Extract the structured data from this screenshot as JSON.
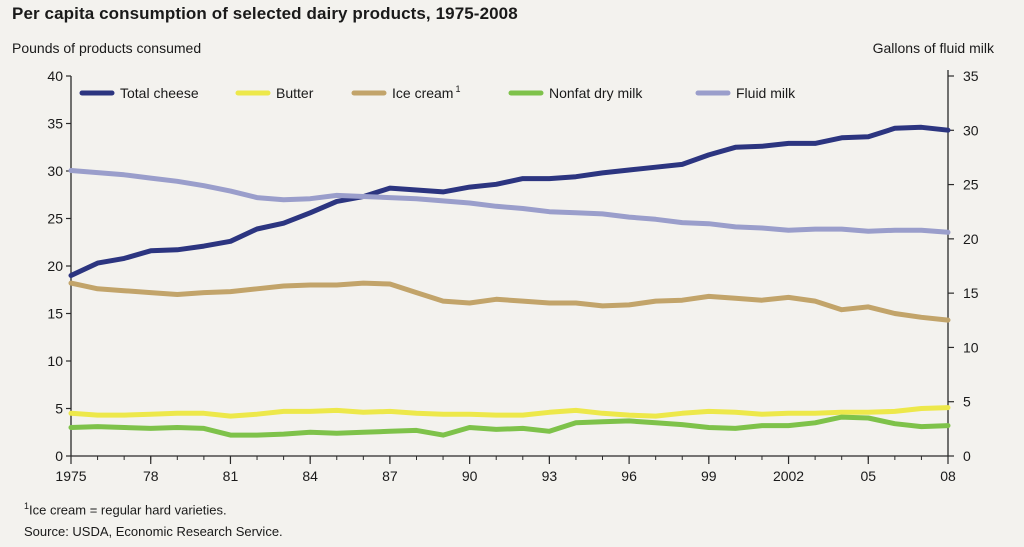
{
  "chart_data": {
    "type": "line",
    "title": "Per capita consumption of selected dairy products, 1975-2008",
    "ylabel_left": "Pounds of products consumed",
    "ylabel_right": "Gallons of fluid milk",
    "x": [
      1975,
      1976,
      1977,
      1978,
      1979,
      1980,
      1981,
      1982,
      1983,
      1984,
      1985,
      1986,
      1987,
      1988,
      1989,
      1990,
      1991,
      1992,
      1993,
      1994,
      1995,
      1996,
      1997,
      1998,
      1999,
      2000,
      2001,
      2002,
      2003,
      2004,
      2005,
      2006,
      2007,
      2008
    ],
    "x_tick_values": [
      1975,
      1978,
      1981,
      1984,
      1987,
      1990,
      1993,
      1996,
      1999,
      2002,
      2005,
      2008
    ],
    "x_tick_labels": [
      "1975",
      "78",
      "81",
      "84",
      "87",
      "90",
      "93",
      "96",
      "99",
      "2002",
      "05",
      "08"
    ],
    "ylim_left": [
      0,
      40
    ],
    "yticks_left": [
      0,
      5,
      10,
      15,
      20,
      25,
      30,
      35,
      40
    ],
    "ylim_right": [
      0,
      35
    ],
    "yticks_right": [
      0,
      5,
      10,
      15,
      20,
      25,
      30,
      35
    ],
    "legend_position": "top",
    "series": [
      {
        "name": "Total cheese",
        "axis": "left",
        "color": "#2c3580",
        "values": [
          19.0,
          20.3,
          20.8,
          21.6,
          21.7,
          22.1,
          22.6,
          23.9,
          24.5,
          25.6,
          26.8,
          27.3,
          28.2,
          28.0,
          27.8,
          28.3,
          28.6,
          29.2,
          29.2,
          29.4,
          29.8,
          30.1,
          30.4,
          30.7,
          31.7,
          32.5,
          32.6,
          32.9,
          32.9,
          33.5,
          33.6,
          34.5,
          34.6,
          34.3
        ]
      },
      {
        "name": "Butter",
        "axis": "left",
        "color": "#ede84a",
        "values": [
          4.5,
          4.3,
          4.3,
          4.4,
          4.5,
          4.5,
          4.2,
          4.4,
          4.7,
          4.7,
          4.8,
          4.6,
          4.7,
          4.5,
          4.4,
          4.4,
          4.3,
          4.3,
          4.6,
          4.8,
          4.5,
          4.3,
          4.2,
          4.5,
          4.7,
          4.6,
          4.4,
          4.5,
          4.5,
          4.6,
          4.6,
          4.7,
          5.0,
          5.1
        ]
      },
      {
        "name": "Ice cream",
        "name_sup": "1",
        "axis": "left",
        "color": "#c2a46a",
        "values": [
          18.2,
          17.6,
          17.4,
          17.2,
          17.0,
          17.2,
          17.3,
          17.6,
          17.9,
          18.0,
          18.0,
          18.2,
          18.1,
          17.2,
          16.3,
          16.1,
          16.5,
          16.3,
          16.1,
          16.1,
          15.8,
          15.9,
          16.3,
          16.4,
          16.8,
          16.6,
          16.4,
          16.7,
          16.3,
          15.4,
          15.7,
          15.0,
          14.6,
          14.3
        ]
      },
      {
        "name": "Nonfat dry milk",
        "axis": "left",
        "color": "#7ec24a",
        "values": [
          3.0,
          3.1,
          3.0,
          2.9,
          3.0,
          2.9,
          2.2,
          2.2,
          2.3,
          2.5,
          2.4,
          2.5,
          2.6,
          2.7,
          2.2,
          3.0,
          2.8,
          2.9,
          2.6,
          3.5,
          3.6,
          3.7,
          3.5,
          3.3,
          3.0,
          2.9,
          3.2,
          3.2,
          3.5,
          4.1,
          4.0,
          3.4,
          3.1,
          3.2
        ]
      },
      {
        "name": "Fluid milk",
        "axis": "right",
        "color": "#9a9ecb",
        "values": [
          26.3,
          26.1,
          25.9,
          25.6,
          25.3,
          24.9,
          24.4,
          23.8,
          23.6,
          23.7,
          24.0,
          23.9,
          23.8,
          23.7,
          23.5,
          23.3,
          23.0,
          22.8,
          22.5,
          22.4,
          22.3,
          22.0,
          21.8,
          21.5,
          21.4,
          21.1,
          21.0,
          20.8,
          20.9,
          20.9,
          20.7,
          20.8,
          20.8,
          20.6
        ]
      }
    ]
  },
  "footnote": {
    "marker": "1",
    "text": "Ice cream = regular hard varieties."
  },
  "source": "Source: USDA, Economic Research Service."
}
